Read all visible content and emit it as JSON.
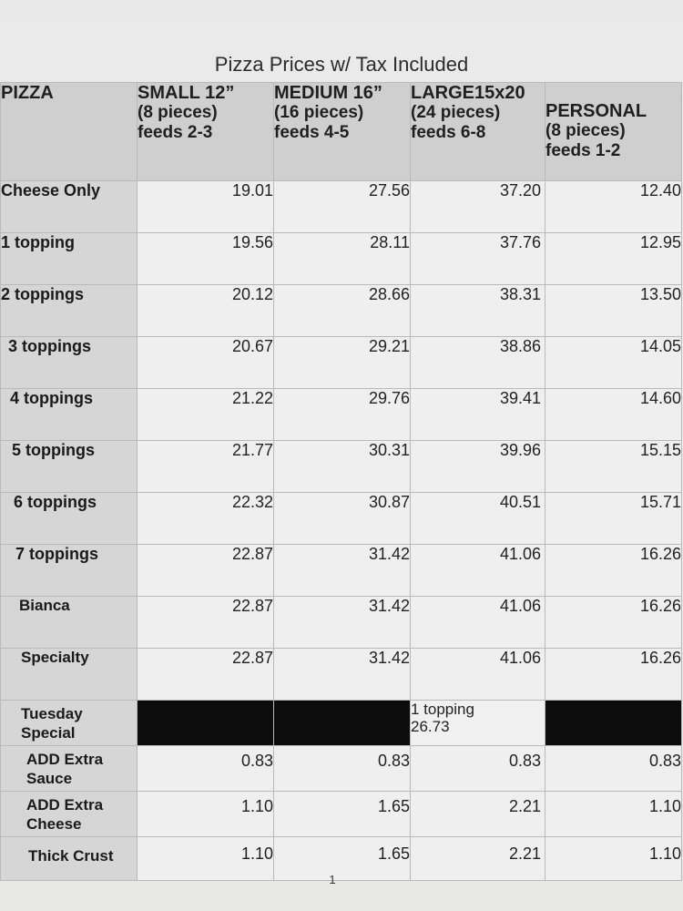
{
  "title": "Pizza Prices w/ Tax Included",
  "headers": {
    "corner": "PIZZA",
    "small": {
      "name": "SMALL 12”",
      "pieces": "(8 pieces)",
      "feeds": "feeds 2-3"
    },
    "medium": {
      "name": "MEDIUM 16”",
      "pieces": "(16 pieces)",
      "feeds": "feeds 4-5"
    },
    "large": {
      "name": "LARGE15x20",
      "pieces": "(24 pieces)",
      "feeds": "feeds 6-8"
    },
    "personal": {
      "name": "PERSONAL",
      "pieces": "(8 pieces)",
      "feeds": "feeds 1-2"
    }
  },
  "rows": [
    {
      "label": "Cheese Only",
      "small": "19.01",
      "medium": "27.56",
      "large": "37.20",
      "personal": "12.40"
    },
    {
      "label": "1 topping",
      "small": "19.56",
      "medium": "28.11",
      "large": "37.76",
      "personal": "12.95"
    },
    {
      "label": "2 toppings",
      "small": "20.12",
      "medium": "28.66",
      "large": "38.31",
      "personal": "13.50"
    },
    {
      "label": "3 toppings",
      "small": "20.67",
      "medium": "29.21",
      "large": "38.86",
      "personal": "14.05"
    },
    {
      "label": "4 toppings",
      "small": "21.22",
      "medium": "29.76",
      "large": "39.41",
      "personal": "14.60"
    },
    {
      "label": "5 toppings",
      "small": "21.77",
      "medium": "30.31",
      "large": "39.96",
      "personal": "15.15"
    },
    {
      "label": "6 toppings",
      "small": "22.32",
      "medium": "30.87",
      "large": "40.51",
      "personal": "15.71"
    },
    {
      "label": "7 toppings",
      "small": "22.87",
      "medium": "31.42",
      "large": "41.06",
      "personal": "16.26"
    },
    {
      "label": "Bianca",
      "small": "22.87",
      "medium": "31.42",
      "large": "41.06",
      "personal": "16.26"
    },
    {
      "label": "Specialty",
      "small": "22.87",
      "medium": "31.42",
      "large": "41.06",
      "personal": "16.26"
    }
  ],
  "tuesday": {
    "label_1": "Tuesday",
    "label_2": "Special",
    "large_1": "1 topping",
    "large_2": "26.73"
  },
  "extras": [
    {
      "label_1": "ADD Extra",
      "label_2": "Sauce",
      "small": "0.83",
      "medium": "0.83",
      "large": "0.83",
      "personal": "0.83"
    },
    {
      "label_1": "ADD Extra",
      "label_2": "Cheese",
      "small": "1.10",
      "medium": "1.65",
      "large": "2.21",
      "personal": "1.10"
    },
    {
      "label_1": "Thick Crust",
      "label_2": "",
      "small": "1.10",
      "medium": "1.65",
      "large": "2.21",
      "personal": "1.10"
    }
  ],
  "page_number": "1"
}
